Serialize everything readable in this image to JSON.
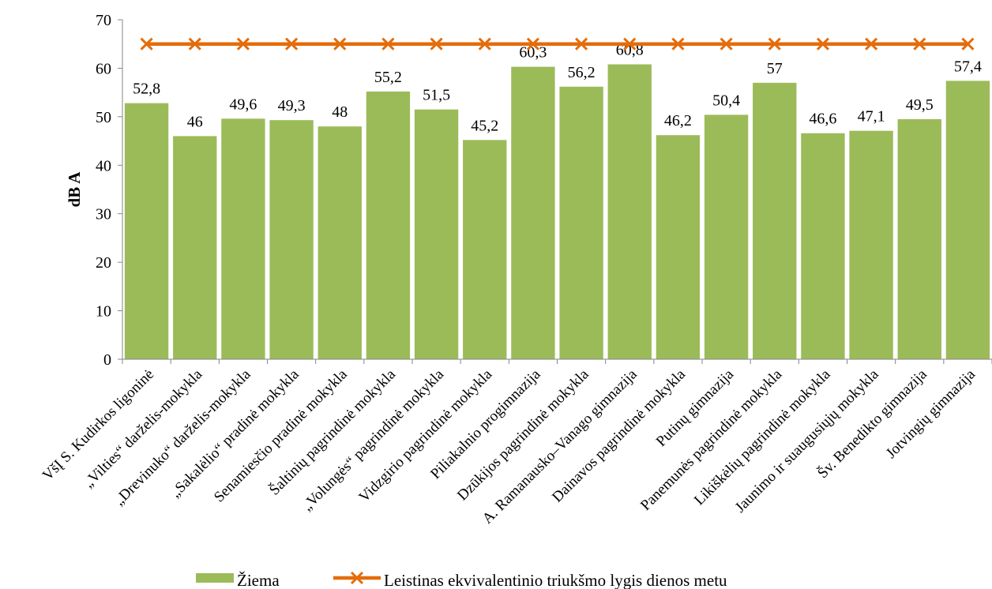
{
  "chart_data": {
    "type": "bar",
    "ylabel": "dB A",
    "ylim": [
      0,
      70
    ],
    "yticks": [
      "0",
      "10",
      "20",
      "30",
      "40",
      "50",
      "60",
      "70"
    ],
    "categories": [
      "VšĮ S. Kudirkos ligoninė",
      "„Vilties“ darželis-mokykla",
      "„Drevinuko“ darželis-mokykla",
      "„Sakalėlio“ pradinė mokykla",
      "Senamiesčio pradinė mokykla",
      "Šaltinių pagrindinė mokykla",
      "„Volungės“  pagrindinė mokykla",
      "Vidzgirio pagrindinė mokykla",
      "Piliakalnio progimnazija",
      "Dzūkijos pagrindinė mokykla",
      "A. Ramanausko–Vanago gimnazija",
      "Dainavos pagrindinė mokykla",
      "Putinų gimnazija",
      "Panemunės pagrindinė mokykla",
      "Likiškėlių pagrindinė mokykla",
      "Jaunimo ir suaugusiųjų mokykla",
      "Šv. Benedikto gimnazija",
      "Jotvingių gimnazija"
    ],
    "series": [
      {
        "name": "Žiema",
        "type": "bar",
        "color": "#9bbb59",
        "values": [
          52.8,
          46,
          49.6,
          49.3,
          48,
          55.2,
          51.5,
          45.2,
          60.3,
          56.2,
          60.8,
          46.2,
          50.4,
          57,
          46.6,
          47.1,
          49.5,
          57.4
        ],
        "labels": [
          "52,8",
          "46",
          "49,6",
          "49,3",
          "48",
          "55,2",
          "51,5",
          "45,2",
          "60,3",
          "56,2",
          "60,8",
          "46,2",
          "50,4",
          "57",
          "46,6",
          "47,1",
          "49,5",
          "57,4"
        ]
      },
      {
        "name": "Leistinas ekvivalentinio triukšmo lygis dienos metu",
        "type": "line",
        "marker": "x",
        "color": "#e46c0a",
        "values": [
          65,
          65,
          65,
          65,
          65,
          65,
          65,
          65,
          65,
          65,
          65,
          65,
          65,
          65,
          65,
          65,
          65,
          65
        ]
      }
    ],
    "grid": false,
    "legend": "bottom"
  }
}
